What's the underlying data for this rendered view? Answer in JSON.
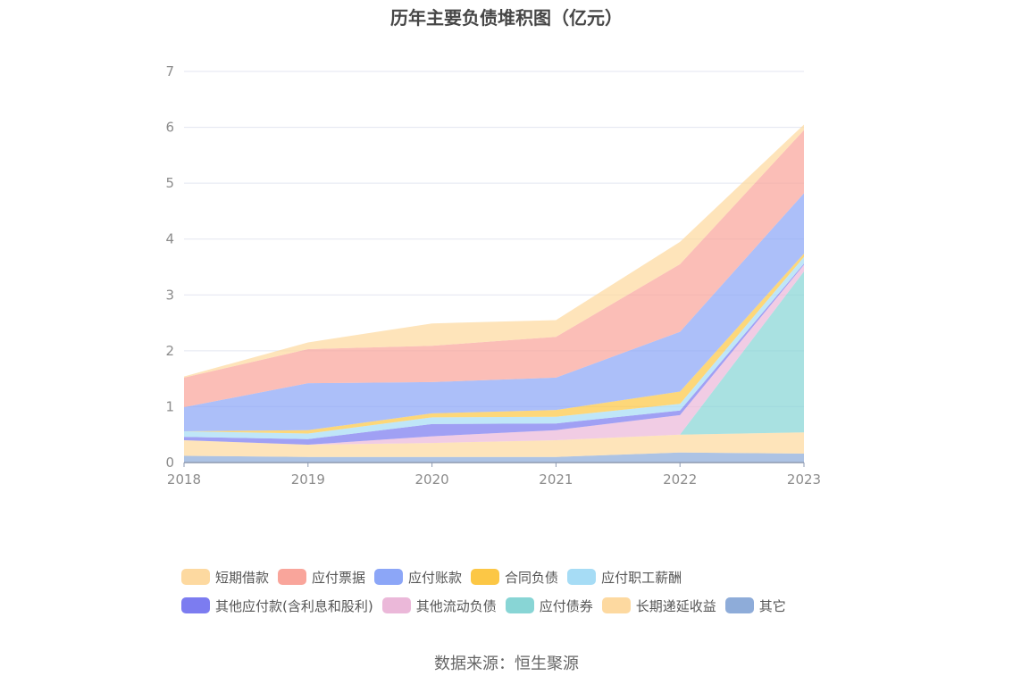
{
  "chart_data": {
    "type": "area",
    "stacked": true,
    "title": "历年主要负债堆积图（亿元）",
    "source": "数据来源：恒生聚源",
    "xlabel": "",
    "ylabel": "",
    "ylim": [
      0,
      7
    ],
    "y_ticks": [
      "0",
      "1",
      "2",
      "3",
      "4",
      "5",
      "6",
      "7"
    ],
    "categories": [
      "2018",
      "2019",
      "2020",
      "2021",
      "2022",
      "2023"
    ],
    "grid": true,
    "legend_position": "bottom",
    "series": [
      {
        "name": "其它",
        "color": "#8eacd9",
        "values": [
          0.12,
          0.1,
          0.1,
          0.1,
          0.18,
          0.16
        ]
      },
      {
        "name": "长期递延收益",
        "color": "#fdd9a0",
        "values": [
          0.28,
          0.22,
          0.25,
          0.3,
          0.32,
          0.38
        ]
      },
      {
        "name": "应付债券",
        "color": "#88d5d5",
        "values": [
          0,
          0,
          0,
          0,
          0,
          2.88
        ]
      },
      {
        "name": "其他流动负债",
        "color": "#ebb8d9",
        "values": [
          0,
          0,
          0.12,
          0.18,
          0.35,
          0.12
        ]
      },
      {
        "name": "其他应付款(含利息和股利)",
        "color": "#7c7cf0",
        "values": [
          0.06,
          0.1,
          0.22,
          0.12,
          0.08,
          0.02
        ]
      },
      {
        "name": "应付职工薪酬",
        "color": "#a6dcf5",
        "values": [
          0.1,
          0.1,
          0.12,
          0.12,
          0.12,
          0.12
        ]
      },
      {
        "name": "合同负债",
        "color": "#fcc745",
        "values": [
          0,
          0.06,
          0.07,
          0.12,
          0.22,
          0.06
        ]
      },
      {
        "name": "应付账款",
        "color": "#8ca6f7",
        "values": [
          0.43,
          0.84,
          0.56,
          0.58,
          1.07,
          1.08
        ]
      },
      {
        "name": "应付票据",
        "color": "#f9a59b",
        "values": [
          0.53,
          0.61,
          0.65,
          0.73,
          1.21,
          1.13
        ]
      },
      {
        "name": "短期借款",
        "color": "#fdd9a0",
        "values": [
          0.02,
          0.12,
          0.4,
          0.3,
          0.4,
          0.1
        ]
      }
    ]
  },
  "legend": {
    "rows": [
      [
        {
          "label": "短期借款",
          "color": "#fdd9a0"
        },
        {
          "label": "应付票据",
          "color": "#f9a59b"
        },
        {
          "label": "应付账款",
          "color": "#8ca6f7"
        },
        {
          "label": "合同负债",
          "color": "#fcc745"
        },
        {
          "label": "应付职工薪酬",
          "color": "#a6dcf5"
        }
      ],
      [
        {
          "label": "其他应付款(含利息和股利)",
          "color": "#7c7cf0"
        },
        {
          "label": "其他流动负债",
          "color": "#ebb8d9"
        },
        {
          "label": "应付债券",
          "color": "#88d5d5"
        },
        {
          "label": "长期递延收益",
          "color": "#fdd9a0"
        },
        {
          "label": "其它",
          "color": "#8eacd9"
        }
      ]
    ]
  }
}
